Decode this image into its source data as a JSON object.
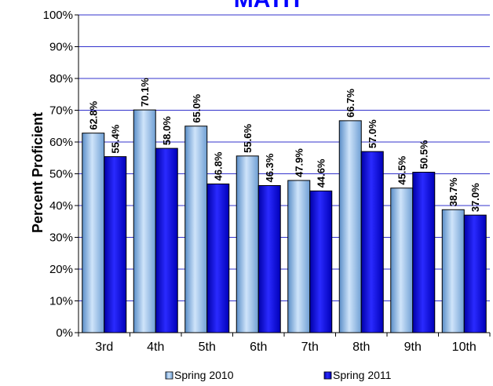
{
  "chart_data": {
    "type": "bar",
    "title": "MATH",
    "xlabel": "",
    "ylabel": "Percent Proficient",
    "ylim": [
      0,
      100
    ],
    "y_ticks": [
      "0%",
      "10%",
      "20%",
      "30%",
      "40%",
      "50%",
      "60%",
      "70%",
      "80%",
      "90%",
      "100%"
    ],
    "categories": [
      "3rd",
      "4th",
      "5th",
      "6th",
      "7th",
      "8th",
      "9th",
      "10th"
    ],
    "series": [
      {
        "name": "Spring 2010",
        "values": [
          62.8,
          70.1,
          65.0,
          55.6,
          47.9,
          66.7,
          45.5,
          38.7
        ],
        "labels": [
          "62.8%",
          "70.1%",
          "65.0%",
          "55.6%",
          "47.9%",
          "66.7%",
          "45.5%",
          "38.7%"
        ],
        "color": "#a6caf0"
      },
      {
        "name": "Spring 2011",
        "values": [
          55.4,
          58.0,
          46.8,
          46.3,
          44.6,
          57.0,
          50.5,
          37.0
        ],
        "labels": [
          "55.4%",
          "58.0%",
          "46.8%",
          "46.3%",
          "44.6%",
          "57.0%",
          "50.5%",
          "37.0%"
        ],
        "color": "#0000ff"
      }
    ],
    "grid": true,
    "grid_color": "#3333cc",
    "legend_position": "bottom"
  }
}
